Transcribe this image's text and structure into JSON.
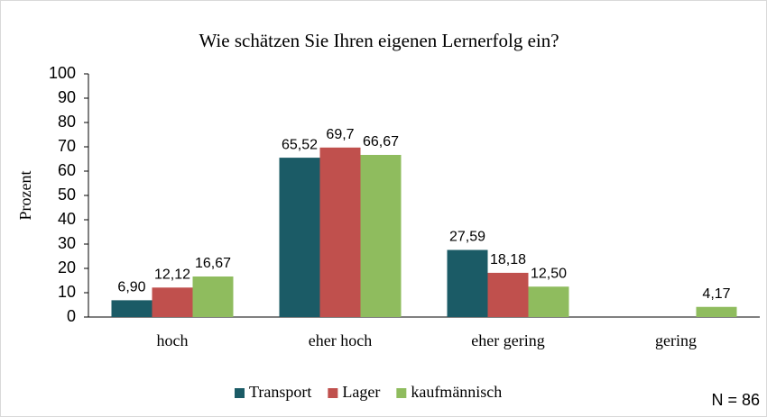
{
  "chart_data": {
    "type": "bar",
    "title": "Wie schätzen Sie Ihren eigenen Lernerfolg ein?",
    "y_label": "Prozent",
    "annotation": "N = 86",
    "categories": [
      "hoch",
      "eher hoch",
      "eher gering",
      "gering"
    ],
    "series": [
      {
        "name": "Transport",
        "color": "#1b5b66",
        "values": [
          6.9,
          65.52,
          27.59,
          null
        ],
        "value_labels": [
          "6,90",
          "65,52",
          "27,59",
          null
        ]
      },
      {
        "name": "Lager",
        "color": "#c0504d",
        "values": [
          12.12,
          69.7,
          18.18,
          null
        ],
        "value_labels": [
          "12,12",
          "69,7",
          "18,18",
          null
        ]
      },
      {
        "name": "kaufmännisch",
        "color": "#8fbc5e",
        "values": [
          16.67,
          66.67,
          12.5,
          4.17
        ],
        "value_labels": [
          "16,67",
          "66,67",
          "12,50",
          "4,17"
        ]
      }
    ],
    "ylim": [
      0,
      100
    ],
    "yticks": [
      0,
      10,
      20,
      30,
      40,
      50,
      60,
      70,
      80,
      90,
      100
    ],
    "grid": false,
    "legend": "bottom"
  }
}
